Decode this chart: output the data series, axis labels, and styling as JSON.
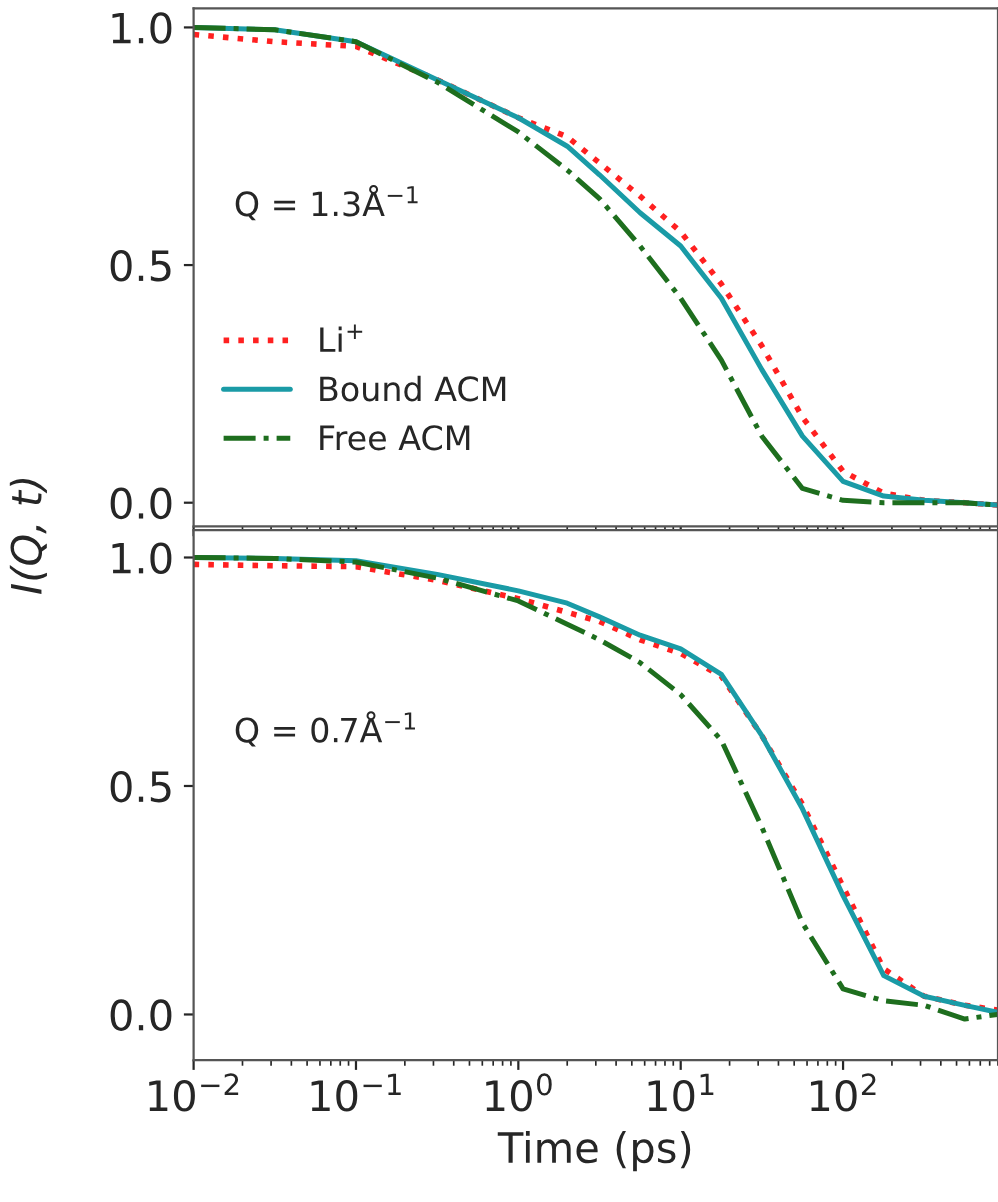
{
  "chart_data": [
    {
      "type": "line",
      "ylabel": "I(Q, t)",
      "log": "x",
      "legend": "left",
      "grid": false,
      "tick_labels": "y",
      "x": [
        0.01,
        0.0316,
        0.1,
        0.316,
        1,
        2,
        3.16,
        5.62,
        10,
        17.8,
        31.6,
        56.2,
        100,
        178,
        316,
        562,
        891
      ],
      "xlim": [
        0.01,
        900
      ],
      "ylim": [
        -0.05,
        1.04
      ],
      "xticks": [
        {
          "value": 0.01,
          "label": null
        },
        {
          "value": 0.1,
          "label": null
        },
        {
          "value": 1,
          "label": null
        },
        {
          "value": 10,
          "label": null
        },
        {
          "value": 100,
          "label": null
        }
      ],
      "yticks": [
        {
          "value": 0,
          "label": "0.0"
        },
        {
          "value": 0.5,
          "label": "0.5"
        },
        {
          "value": 1,
          "label": "1.0"
        }
      ],
      "annotations": [
        "Q = 1.3Å$^{−1}$"
      ],
      "series": [
        {
          "name": "Li$^{+}$",
          "color": "#ff2020",
          "line_style": "dotted",
          "values": [
            0.985,
            0.97,
            0.96,
            0.89,
            0.81,
            0.77,
            0.715,
            0.645,
            0.57,
            0.46,
            0.33,
            0.18,
            0.066,
            0.02,
            0.005,
            0.0,
            -0.005
          ]
        },
        {
          "name": "Bound ACM",
          "color": "#1a9ba6",
          "line_style": "solid",
          "values": [
            1.0,
            0.995,
            0.97,
            0.89,
            0.81,
            0.75,
            0.69,
            0.61,
            0.54,
            0.43,
            0.28,
            0.14,
            0.045,
            0.014,
            0.005,
            0.0,
            -0.005
          ]
        },
        {
          "name": "Free ACM",
          "color": "#1e6e1e",
          "line_style": "dashdot",
          "values": [
            1.0,
            0.995,
            0.97,
            0.885,
            0.78,
            0.7,
            0.64,
            0.54,
            0.43,
            0.3,
            0.14,
            0.03,
            0.005,
            0.0,
            0.0,
            0.0,
            -0.005
          ]
        }
      ]
    },
    {
      "type": "line",
      "xlabel": "Time (ps)",
      "log": "x",
      "grid": false,
      "x": [
        0.01,
        0.0316,
        0.1,
        0.316,
        1,
        2,
        3.16,
        5.62,
        10,
        17.8,
        31.6,
        56.2,
        100,
        178,
        316,
        562,
        891
      ],
      "xlim": [
        0.01,
        900
      ],
      "ylim": [
        -0.1,
        1.06
      ],
      "xticks": [
        {
          "value": 0.01,
          "label": "10$^{−2}$"
        },
        {
          "value": 0.1,
          "label": "10$^{−1}$"
        },
        {
          "value": 1,
          "label": "10$^{0}$"
        },
        {
          "value": 10,
          "label": "10$^{1}$"
        },
        {
          "value": 100,
          "label": "10$^{2}$"
        }
      ],
      "yticks": [
        {
          "value": 0,
          "label": "0.0"
        },
        {
          "value": 0.5,
          "label": "0.5"
        },
        {
          "value": 1,
          "label": "1.0"
        }
      ],
      "annotations": [
        "Q = 0.7Å$^{−1}$"
      ],
      "series": [
        {
          "color": "#ff2020",
          "line_style": "dotted",
          "values": [
            0.985,
            0.982,
            0.98,
            0.95,
            0.91,
            0.88,
            0.86,
            0.82,
            0.79,
            0.74,
            0.61,
            0.46,
            0.28,
            0.1,
            0.04,
            0.02,
            0.01
          ]
        },
        {
          "color": "#1a9ba6",
          "line_style": "solid",
          "values": [
            1.0,
            0.998,
            0.993,
            0.963,
            0.927,
            0.9,
            0.87,
            0.83,
            0.8,
            0.744,
            0.61,
            0.45,
            0.26,
            0.085,
            0.04,
            0.02,
            0.005
          ]
        },
        {
          "color": "#1e6e1e",
          "line_style": "dashdot",
          "values": [
            1.0,
            0.998,
            0.99,
            0.955,
            0.905,
            0.854,
            0.82,
            0.77,
            0.7,
            0.6,
            0.41,
            0.2,
            0.056,
            0.03,
            0.02,
            -0.01,
            0.0
          ]
        }
      ]
    }
  ]
}
